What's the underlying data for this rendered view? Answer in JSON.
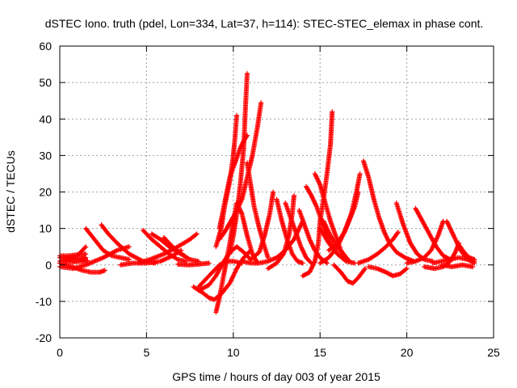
{
  "chart_data": {
    "type": "scatter",
    "title": "dSTEC Iono. truth (pdel, Lon=334, Lat=37, h=114): STEC-STEC_elemax in phase cont.",
    "xlabel": "GPS time / hours of day 003 of year 2015",
    "ylabel": "dSTEC  / TECUs",
    "xlim": [
      0,
      25
    ],
    "ylim": [
      -20,
      60
    ],
    "x_ticks": [
      0,
      5,
      10,
      15,
      20,
      25
    ],
    "y_ticks": [
      -20,
      -10,
      0,
      10,
      20,
      30,
      40,
      50,
      60
    ],
    "grid": true,
    "marker": "plus",
    "color": "#ff0000",
    "arcs": [
      [
        [
          0.0,
          2.0
        ],
        [
          0.4,
          1.8
        ],
        [
          0.8,
          1.6
        ],
        [
          1.2,
          1.8
        ],
        [
          1.5,
          2.0
        ]
      ],
      [
        [
          0.0,
          1.0
        ],
        [
          0.5,
          1.5
        ],
        [
          1.0,
          2.5
        ],
        [
          1.3,
          4.0
        ],
        [
          1.5,
          5.0
        ]
      ],
      [
        [
          0.0,
          0.5
        ],
        [
          0.7,
          -0.5
        ],
        [
          1.3,
          -1.5
        ],
        [
          1.8,
          -2.0
        ],
        [
          2.3,
          -2.0
        ],
        [
          2.6,
          -1.5
        ]
      ],
      [
        [
          0.0,
          2.5
        ],
        [
          0.5,
          2.5
        ],
        [
          1.0,
          2.8
        ],
        [
          1.5,
          3.0
        ]
      ],
      [
        [
          0.3,
          1.0
        ],
        [
          0.8,
          0.8
        ],
        [
          1.3,
          1.0
        ],
        [
          1.6,
          1.2
        ]
      ],
      [
        [
          1.5,
          10.0
        ],
        [
          2.0,
          7.0
        ],
        [
          2.5,
          4.0
        ],
        [
          3.0,
          2.5
        ],
        [
          3.5,
          2.0
        ],
        [
          4.0,
          1.5
        ]
      ],
      [
        [
          0.0,
          -0.5
        ],
        [
          0.8,
          -1.0
        ],
        [
          1.5,
          0.0
        ],
        [
          2.5,
          2.0
        ],
        [
          3.3,
          4.0
        ],
        [
          4.0,
          5.0
        ]
      ],
      [
        [
          2.4,
          11.0
        ],
        [
          2.8,
          8.5
        ],
        [
          3.3,
          6.0
        ],
        [
          4.0,
          3.0
        ],
        [
          4.8,
          1.0
        ],
        [
          5.5,
          0.5
        ]
      ],
      [
        [
          3.5,
          0.0
        ],
        [
          4.2,
          0.5
        ],
        [
          5.0,
          0.5
        ],
        [
          5.8,
          1.0
        ],
        [
          6.5,
          2.5
        ],
        [
          7.0,
          4.0
        ]
      ],
      [
        [
          4.8,
          9.5
        ],
        [
          5.3,
          7.0
        ],
        [
          5.8,
          5.0
        ],
        [
          6.3,
          3.0
        ],
        [
          6.8,
          1.5
        ],
        [
          7.3,
          1.0
        ]
      ],
      [
        [
          5.3,
          8.5
        ],
        [
          5.8,
          7.0
        ],
        [
          6.3,
          5.0
        ],
        [
          6.8,
          3.5
        ],
        [
          7.2,
          2.5
        ]
      ],
      [
        [
          6.0,
          7.5
        ],
        [
          6.5,
          5.0
        ],
        [
          7.0,
          3.0
        ],
        [
          7.5,
          1.5
        ],
        [
          8.0,
          1.0
        ]
      ],
      [
        [
          4.5,
          0.5
        ],
        [
          5.2,
          1.5
        ],
        [
          6.0,
          3.0
        ],
        [
          6.8,
          5.0
        ],
        [
          7.5,
          7.0
        ],
        [
          7.9,
          8.5
        ]
      ],
      [
        [
          6.8,
          0.2
        ],
        [
          7.4,
          0.0
        ],
        [
          8.0,
          0.2
        ],
        [
          8.6,
          0.5
        ]
      ],
      [
        [
          7.7,
          -6.0
        ],
        [
          8.2,
          -7.5
        ],
        [
          8.6,
          -9.0
        ],
        [
          8.9,
          -9.5
        ],
        [
          9.3,
          -8.0
        ],
        [
          9.8,
          -5.0
        ],
        [
          10.2,
          -1.0
        ],
        [
          10.6,
          2.0
        ],
        [
          11.0,
          4.0
        ]
      ],
      [
        [
          8.0,
          -7.0
        ],
        [
          8.6,
          -5.5
        ],
        [
          9.0,
          -3.0
        ],
        [
          9.4,
          0.5
        ],
        [
          9.8,
          3.5
        ],
        [
          10.2,
          5.0
        ],
        [
          10.6,
          3.5
        ],
        [
          11.0,
          1.5
        ]
      ],
      [
        [
          9.0,
          -13.0
        ],
        [
          9.2,
          -9.0
        ],
        [
          9.4,
          -4.0
        ],
        [
          9.6,
          1.0
        ],
        [
          9.8,
          6.0
        ],
        [
          10.0,
          12.0
        ],
        [
          10.2,
          17.0
        ],
        [
          10.5,
          14.0
        ],
        [
          10.8,
          8.0
        ],
        [
          11.1,
          3.0
        ],
        [
          11.4,
          0.5
        ]
      ],
      [
        [
          9.0,
          5.0
        ],
        [
          9.3,
          10.0
        ],
        [
          9.5,
          16.0
        ],
        [
          9.8,
          23.0
        ],
        [
          10.0,
          30.0
        ],
        [
          10.1,
          35.0
        ],
        [
          10.2,
          41.0
        ]
      ],
      [
        [
          9.2,
          10.0
        ],
        [
          9.5,
          17.0
        ],
        [
          9.8,
          24.0
        ],
        [
          10.1,
          28.0
        ],
        [
          10.4,
          32.0
        ],
        [
          10.6,
          34.0
        ],
        [
          10.8,
          35.5
        ]
      ],
      [
        [
          9.8,
          3.0
        ],
        [
          10.0,
          8.0
        ],
        [
          10.2,
          14.0
        ],
        [
          10.4,
          22.0
        ],
        [
          10.6,
          32.0
        ],
        [
          10.7,
          43.0
        ],
        [
          10.8,
          52.5
        ]
      ],
      [
        [
          9.2,
          7.0
        ],
        [
          9.5,
          9.0
        ],
        [
          9.8,
          11.5
        ],
        [
          10.1,
          14.0
        ],
        [
          10.5,
          18.0
        ],
        [
          10.8,
          24.0
        ],
        [
          11.1,
          30.0
        ],
        [
          11.4,
          38.0
        ],
        [
          11.6,
          44.5
        ]
      ],
      [
        [
          10.8,
          28.0
        ],
        [
          11.0,
          22.0
        ],
        [
          11.2,
          16.0
        ],
        [
          11.5,
          10.0
        ],
        [
          11.8,
          5.0
        ],
        [
          12.0,
          2.0
        ]
      ],
      [
        [
          10.5,
          1.0
        ],
        [
          11.0,
          0.5
        ],
        [
          11.5,
          0.5
        ],
        [
          12.0,
          1.0
        ],
        [
          12.5,
          2.0
        ],
        [
          13.0,
          4.0
        ],
        [
          13.5,
          7.0
        ],
        [
          14.0,
          12.0
        ]
      ],
      [
        [
          11.0,
          1.5
        ],
        [
          11.5,
          3.5
        ],
        [
          11.8,
          8.0
        ],
        [
          12.1,
          14.0
        ],
        [
          12.3,
          20.0
        ]
      ],
      [
        [
          12.5,
          18.0
        ],
        [
          12.8,
          12.0
        ],
        [
          13.1,
          7.0
        ],
        [
          13.4,
          3.0
        ],
        [
          13.7,
          1.0
        ],
        [
          14.0,
          0.5
        ]
      ],
      [
        [
          12.0,
          -1.0
        ],
        [
          12.5,
          0.5
        ],
        [
          12.9,
          3.0
        ],
        [
          13.2,
          8.0
        ],
        [
          13.4,
          14.0
        ],
        [
          13.5,
          19.0
        ]
      ],
      [
        [
          13.0,
          17.0
        ],
        [
          13.3,
          13.0
        ],
        [
          13.6,
          9.0
        ],
        [
          13.9,
          5.0
        ],
        [
          14.2,
          2.0
        ],
        [
          14.5,
          0.5
        ]
      ],
      [
        [
          13.8,
          15.0
        ],
        [
          14.1,
          11.0
        ],
        [
          14.4,
          7.0
        ],
        [
          14.7,
          4.0
        ],
        [
          15.0,
          2.0
        ],
        [
          15.4,
          0.5
        ]
      ],
      [
        [
          14.0,
          -3.0
        ],
        [
          14.4,
          -2.0
        ],
        [
          14.7,
          1.0
        ],
        [
          14.9,
          6.0
        ],
        [
          15.0,
          12.0
        ],
        [
          15.2,
          18.0
        ],
        [
          15.4,
          25.0
        ],
        [
          15.6,
          33.0
        ],
        [
          15.7,
          42.0
        ]
      ],
      [
        [
          14.2,
          21.5
        ],
        [
          14.5,
          19.0
        ],
        [
          14.8,
          16.0
        ],
        [
          15.1,
          12.0
        ],
        [
          15.4,
          8.0
        ],
        [
          15.7,
          5.0
        ],
        [
          16.0,
          3.0
        ]
      ],
      [
        [
          14.7,
          25.0
        ],
        [
          15.0,
          22.0
        ],
        [
          15.3,
          17.0
        ],
        [
          15.6,
          12.0
        ],
        [
          15.9,
          8.0
        ],
        [
          16.2,
          4.0
        ],
        [
          16.6,
          1.5
        ]
      ],
      [
        [
          15.0,
          10.0
        ],
        [
          15.5,
          6.0
        ],
        [
          16.0,
          3.0
        ],
        [
          16.5,
          1.0
        ],
        [
          17.0,
          0.5
        ]
      ],
      [
        [
          15.2,
          12.0
        ],
        [
          15.6,
          8.0
        ],
        [
          16.0,
          5.0
        ],
        [
          16.3,
          3.0
        ],
        [
          16.7,
          1.0
        ]
      ],
      [
        [
          15.8,
          0.0
        ],
        [
          16.2,
          -2.0
        ],
        [
          16.6,
          -4.5
        ],
        [
          16.9,
          -5.0
        ],
        [
          17.2,
          -3.5
        ],
        [
          17.6,
          -1.0
        ]
      ],
      [
        [
          15.5,
          4.0
        ],
        [
          16.0,
          6.0
        ],
        [
          16.4,
          9.0
        ],
        [
          16.8,
          14.0
        ],
        [
          17.1,
          20.0
        ],
        [
          17.3,
          25.0
        ]
      ],
      [
        [
          15.0,
          0.5
        ],
        [
          15.5,
          2.0
        ],
        [
          16.0,
          5.0
        ],
        [
          16.5,
          10.0
        ],
        [
          17.0,
          16.0
        ],
        [
          17.2,
          20.0
        ]
      ],
      [
        [
          17.5,
          28.5
        ],
        [
          17.8,
          24.0
        ],
        [
          18.1,
          18.0
        ],
        [
          18.4,
          13.0
        ],
        [
          18.7,
          9.0
        ],
        [
          19.0,
          6.0
        ],
        [
          19.4,
          3.5
        ],
        [
          19.9,
          2.0
        ],
        [
          20.4,
          1.0
        ]
      ],
      [
        [
          17.8,
          -0.5
        ],
        [
          18.3,
          -1.0
        ],
        [
          18.8,
          -2.0
        ],
        [
          19.2,
          -3.0
        ],
        [
          19.6,
          -2.5
        ],
        [
          20.0,
          -1.0
        ]
      ],
      [
        [
          17.2,
          0.5
        ],
        [
          17.8,
          1.5
        ],
        [
          18.3,
          3.0
        ],
        [
          18.8,
          5.0
        ],
        [
          19.2,
          7.0
        ],
        [
          19.5,
          9.0
        ]
      ],
      [
        [
          19.4,
          17.0
        ],
        [
          19.8,
          11.0
        ],
        [
          20.2,
          6.0
        ],
        [
          20.6,
          3.0
        ],
        [
          21.0,
          1.5
        ],
        [
          21.5,
          1.0
        ]
      ],
      [
        [
          20.5,
          15.5
        ],
        [
          20.9,
          12.0
        ],
        [
          21.3,
          8.5
        ],
        [
          21.7,
          5.0
        ],
        [
          22.1,
          2.5
        ],
        [
          22.5,
          1.5
        ]
      ],
      [
        [
          20.0,
          0.5
        ],
        [
          20.5,
          1.0
        ],
        [
          21.0,
          2.0
        ],
        [
          21.4,
          4.0
        ],
        [
          21.8,
          8.0
        ],
        [
          22.1,
          12.0
        ]
      ],
      [
        [
          22.3,
          12.0
        ],
        [
          22.7,
          8.0
        ],
        [
          23.1,
          4.0
        ],
        [
          23.5,
          1.5
        ],
        [
          23.9,
          0.5
        ]
      ],
      [
        [
          21.0,
          -0.5
        ],
        [
          21.6,
          -1.0
        ],
        [
          22.1,
          -0.5
        ],
        [
          22.5,
          1.0
        ],
        [
          22.8,
          3.5
        ],
        [
          23.0,
          6.0
        ]
      ],
      [
        [
          23.0,
          5.5
        ],
        [
          23.3,
          3.5
        ],
        [
          23.6,
          2.0
        ],
        [
          23.9,
          1.5
        ]
      ],
      [
        [
          21.5,
          0.5
        ],
        [
          22.0,
          1.0
        ],
        [
          22.5,
          1.5
        ],
        [
          23.0,
          2.0
        ],
        [
          23.5,
          1.5
        ],
        [
          23.9,
          1.0
        ]
      ],
      [
        [
          22.0,
          0.0
        ],
        [
          22.6,
          -0.5
        ],
        [
          23.2,
          0.0
        ],
        [
          23.8,
          -0.5
        ]
      ],
      [
        [
          8.0,
          -6.0
        ],
        [
          8.4,
          -4.0
        ],
        [
          8.8,
          -2.0
        ],
        [
          9.2,
          0.0
        ],
        [
          9.6,
          1.0
        ],
        [
          10.0,
          1.0
        ],
        [
          10.5,
          0.5
        ]
      ]
    ]
  }
}
